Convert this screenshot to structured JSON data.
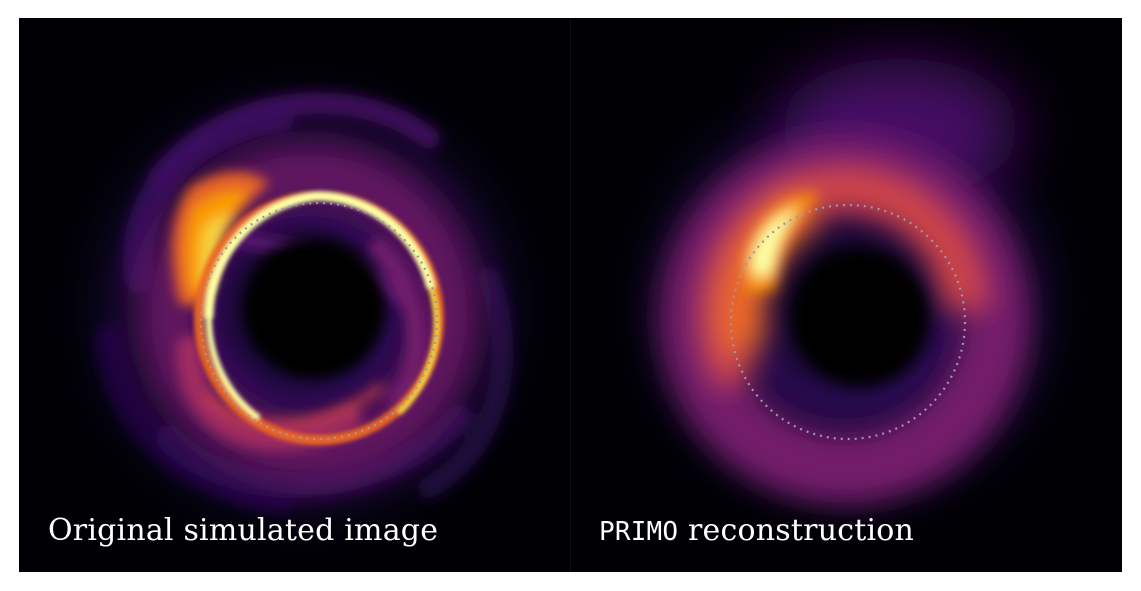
{
  "panels": {
    "left": {
      "caption": "Original simulated image"
    },
    "right": {
      "caption_mono": "PRIMO",
      "caption_rest": " reconstruction"
    }
  },
  "colors": {
    "background": "#000004",
    "colormap": [
      "#000004",
      "#1b0c41",
      "#4a0c6b",
      "#781c6d",
      "#a52c60",
      "#cf4446",
      "#ed6925",
      "#fb9b06",
      "#f7d13d",
      "#fcffa4"
    ],
    "ring_guide": "#9a9aa8"
  }
}
